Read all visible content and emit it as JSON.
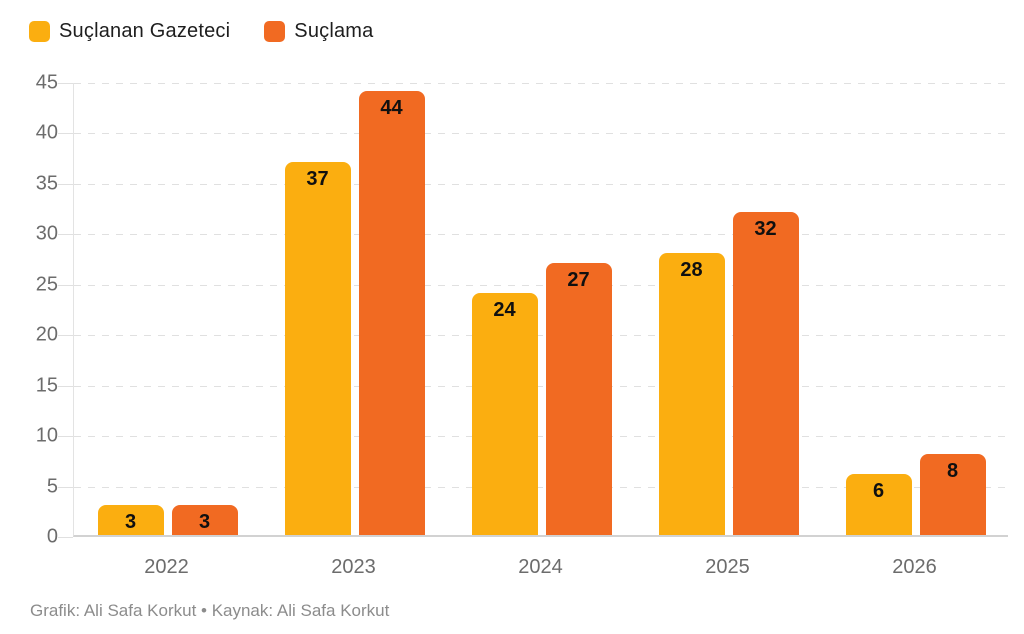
{
  "legend": {
    "items": [
      {
        "label": "Suçlanan Gazeteci",
        "color": "#FBAE10"
      },
      {
        "label": "Suçlama",
        "color": "#F16A22"
      }
    ]
  },
  "footer": {
    "text": "Grafik: Ali Safa Korkut • Kaynak: Ali Safa Korkut"
  },
  "chart_data": {
    "type": "bar",
    "title": "",
    "xlabel": "",
    "ylabel": "",
    "categories": [
      "2022",
      "2023",
      "2024",
      "2025",
      "2026"
    ],
    "series": [
      {
        "name": "Suçlanan Gazeteci",
        "color": "#FBAE10",
        "values": [
          3,
          37,
          24,
          28,
          6
        ]
      },
      {
        "name": "Suçlama",
        "color": "#F16A22",
        "values": [
          3,
          44,
          27,
          32,
          8
        ]
      }
    ],
    "ylim": [
      0,
      45
    ],
    "ytick_step": 5,
    "grid": "horizontal-dashed",
    "legend_position": "top-left",
    "bar_labels": "inside-top"
  }
}
